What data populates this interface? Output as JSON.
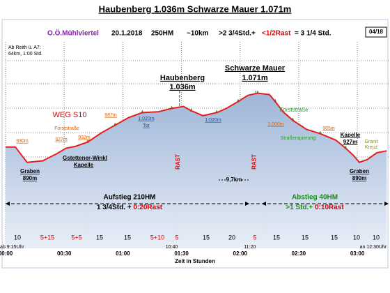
{
  "chart_data": {
    "type": "area",
    "title": "Haubenberg 1.036m Schwarze Mauer 1.071m",
    "subtitle": {
      "region": "O.Ö.Mühlviertel",
      "date": "20.1.2018",
      "ascent": "250HM",
      "distance": "~10km",
      "walk": ">2 3/4Std.+",
      "rest": "<1/2Rast",
      "total": "= 3 1/4 Std."
    },
    "page_number": "04/18",
    "approach": [
      "Ab Reith ü. A7:",
      "64km, 1:00 Std."
    ],
    "x_label": "Zeit in Stunden",
    "x": [
      0,
      5,
      11,
      19,
      26,
      31,
      36,
      42,
      49,
      56,
      63,
      70,
      78,
      85,
      91,
      95,
      101,
      108,
      113,
      119,
      124,
      129,
      135,
      138,
      142,
      147,
      154,
      161,
      169,
      174,
      178,
      181,
      185,
      190,
      195
    ],
    "values": [
      930,
      930,
      890,
      894,
      912,
      927,
      932,
      943,
      967,
      987,
      1007,
      1020,
      1022,
      1031,
      1036,
      1025,
      1012,
      1020,
      1031,
      1049,
      1065,
      1071,
      1067,
      1049,
      1022,
      1000,
      976,
      965,
      948,
      927,
      908,
      890,
      897,
      915,
      920
    ],
    "color": "#e02020",
    "fill": "#b9cbe4",
    "xlim": [
      0,
      196
    ],
    "ylim": [
      665,
      1205
    ],
    "xticks": [
      {
        "value": 0,
        "label": "00:00"
      },
      {
        "value": 30,
        "label": "00:30"
      },
      {
        "value": 60,
        "label": "01:00"
      },
      {
        "value": 90,
        "label": "01:30"
      },
      {
        "value": 120,
        "label": "02:00"
      },
      {
        "value": 150,
        "label": "02:30"
      },
      {
        "value": 180,
        "label": "03:00"
      }
    ],
    "clock_times": [
      {
        "value": 0,
        "label": "ab 9:15Uhr"
      },
      {
        "value": 85,
        "label": "10:40"
      },
      {
        "value": 125,
        "label": "11:20"
      },
      {
        "value": 195,
        "label": "an 12:30Uhr"
      }
    ],
    "rests": [
      {
        "value": 89,
        "label": "RAST"
      },
      {
        "value": 128,
        "label": "RAST"
      }
    ],
    "segment_times": [
      "10",
      "5+15",
      "5+5",
      "15",
      "15",
      "5+10",
      "5",
      "15",
      "20",
      "5",
      "15",
      "15",
      "15",
      "10",
      "10"
    ],
    "annotations": [
      "930m",
      "927m",
      "932m",
      "987m",
      "1.020m",
      "Tor",
      "1.020m",
      "1.000m",
      "965m",
      "Haubenberg",
      "1.036m",
      "Schwarze Mauer",
      "1.071m",
      "WEG S10",
      "Forststraße",
      "Gstettener-Winkl",
      "Kapelle",
      "Graben",
      "890m",
      "Forststraße",
      "Straßenquerung",
      "Kapelle",
      "927m",
      "Graben",
      "890m",
      "Granit",
      "Kreuz",
      "9,7km"
    ],
    "ascent_summary": [
      "Aufstieg 210HM",
      "1 3/4Std. + ",
      "0:20Rast"
    ],
    "descent_summary": [
      "Abstieg 40HM",
      ">1 Std.+ ",
      "0:10Rast"
    ]
  }
}
